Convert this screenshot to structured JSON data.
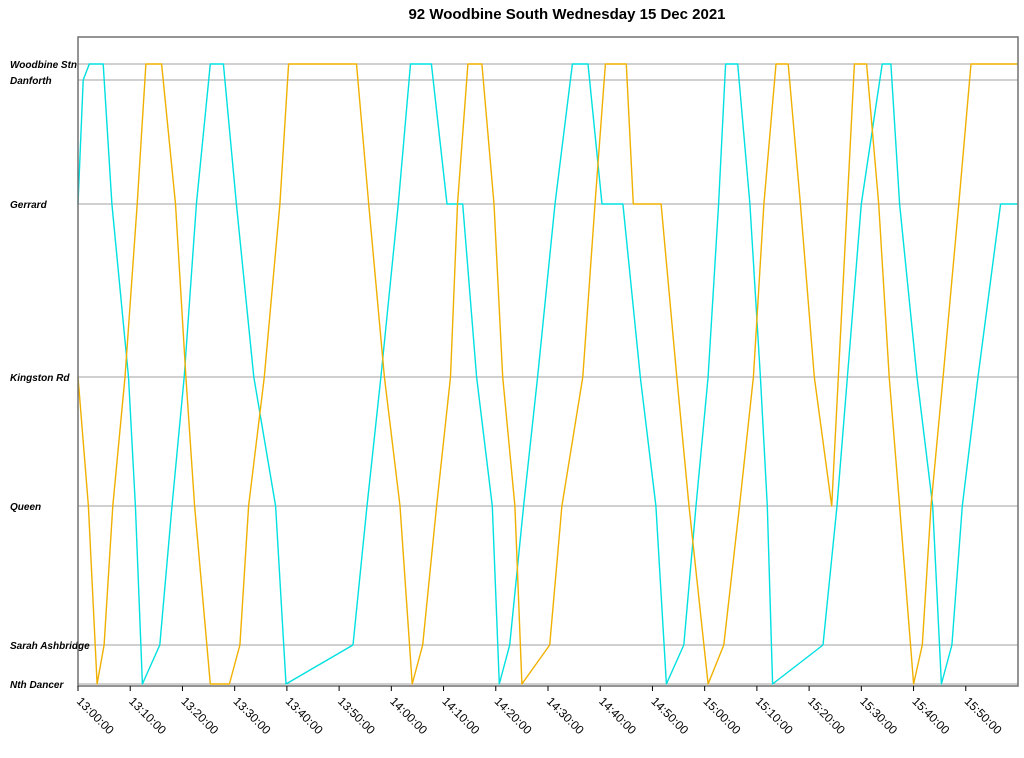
{
  "chart_data": {
    "type": "line",
    "title": "92 Woodbine South Wednesday 15 Dec 2021",
    "x_range": [
      "13:00:00",
      "16:00:00"
    ],
    "x_ticks": [
      "13:00:00",
      "13:10:00",
      "13:20:00",
      "13:30:00",
      "13:40:00",
      "13:50:00",
      "14:00:00",
      "14:10:00",
      "14:20:00",
      "14:30:00",
      "14:40:00",
      "14:50:00",
      "15:00:00",
      "15:10:00",
      "15:20:00",
      "15:30:00",
      "15:40:00",
      "15:50:00"
    ],
    "stops": [
      "Woodbine Stn",
      "Danforth",
      "Gerrard",
      "Kingston Rd",
      "Queen",
      "Sarah Ashbridge",
      "Nth Dancer"
    ],
    "grid": true,
    "colors": [
      "#00e0e0",
      "#f0b000"
    ],
    "series": [
      {
        "points": [
          [
            "13:00:00",
            "Gerrard"
          ],
          [
            "13:01:00",
            "Danforth"
          ],
          [
            "13:02:10",
            "Woodbine Stn"
          ],
          [
            "13:04:50",
            "Woodbine Stn"
          ],
          [
            "13:06:30",
            "Gerrard"
          ],
          [
            "13:09:40",
            "Kingston Rd"
          ],
          [
            "13:11:00",
            "Queen"
          ],
          [
            "13:12:20",
            "Nth Dancer"
          ],
          [
            "13:15:40",
            "Sarah Ashbridge"
          ],
          [
            "13:18:00",
            "Queen"
          ],
          [
            "13:20:20",
            "Kingston Rd"
          ],
          [
            "13:22:40",
            "Gerrard"
          ],
          [
            "13:25:20",
            "Woodbine Stn"
          ],
          [
            "13:27:50",
            "Woodbine Stn"
          ],
          [
            "13:30:20",
            "Gerrard"
          ],
          [
            "13:33:40",
            "Kingston Rd"
          ],
          [
            "13:37:50",
            "Queen"
          ],
          [
            "13:39:50",
            "Nth Dancer"
          ],
          [
            "13:52:40",
            "Sarah Ashbridge"
          ],
          [
            "13:55:20",
            "Queen"
          ],
          [
            "13:58:00",
            "Kingston Rd"
          ],
          [
            "14:01:20",
            "Gerrard"
          ],
          [
            "14:03:40",
            "Woodbine Stn"
          ],
          [
            "14:07:40",
            "Woodbine Stn"
          ],
          [
            "14:10:40",
            "Gerrard"
          ],
          [
            "14:13:40",
            "Gerrard"
          ],
          [
            "14:16:20",
            "Kingston Rd"
          ],
          [
            "14:19:20",
            "Queen"
          ],
          [
            "14:20:40",
            "Nth Dancer"
          ],
          [
            "14:22:40",
            "Sarah Ashbridge"
          ],
          [
            "14:25:20",
            "Queen"
          ],
          [
            "14:28:00",
            "Kingston Rd"
          ],
          [
            "14:31:20",
            "Gerrard"
          ],
          [
            "14:34:40",
            "Woodbine Stn"
          ],
          [
            "14:37:40",
            "Woodbine Stn"
          ],
          [
            "14:40:20",
            "Gerrard"
          ],
          [
            "14:44:20",
            "Gerrard"
          ],
          [
            "14:47:40",
            "Kingston Rd"
          ],
          [
            "14:50:40",
            "Queen"
          ],
          [
            "14:52:40",
            "Nth Dancer"
          ],
          [
            "14:56:00",
            "Sarah Ashbridge"
          ],
          [
            "14:58:20",
            "Queen"
          ],
          [
            "15:00:40",
            "Kingston Rd"
          ],
          [
            "15:02:40",
            "Gerrard"
          ],
          [
            "15:04:00",
            "Woodbine Stn"
          ],
          [
            "15:06:20",
            "Woodbine Stn"
          ],
          [
            "15:08:40",
            "Gerrard"
          ],
          [
            "15:10:40",
            "Kingston Rd"
          ],
          [
            "15:12:00",
            "Queen"
          ],
          [
            "15:13:00",
            "Nth Dancer"
          ],
          [
            "15:22:40",
            "Sarah Ashbridge"
          ],
          [
            "15:25:20",
            "Queen"
          ],
          [
            "15:27:20",
            "Kingston Rd"
          ],
          [
            "15:30:00",
            "Gerrard"
          ],
          [
            "15:34:00",
            "Woodbine Stn"
          ],
          [
            "15:35:40",
            "Woodbine Stn"
          ],
          [
            "15:37:20",
            "Gerrard"
          ],
          [
            "15:40:40",
            "Kingston Rd"
          ],
          [
            "15:43:40",
            "Queen"
          ],
          [
            "15:45:20",
            "Nth Dancer"
          ],
          [
            "15:47:20",
            "Sarah Ashbridge"
          ],
          [
            "15:49:20",
            "Queen"
          ],
          [
            "15:52:20",
            "Kingston Rd"
          ],
          [
            "15:56:40",
            "Gerrard"
          ],
          [
            "15:59:50",
            "Gerrard"
          ]
        ]
      },
      {
        "points": [
          [
            "13:00:00",
            "Kingston Rd"
          ],
          [
            "13:02:00",
            "Queen"
          ],
          [
            "13:03:40",
            "Nth Dancer"
          ],
          [
            "13:05:00",
            "Sarah Ashbridge"
          ],
          [
            "13:06:40",
            "Queen"
          ],
          [
            "13:09:00",
            "Kingston Rd"
          ],
          [
            "13:11:20",
            "Gerrard"
          ],
          [
            "13:13:00",
            "Woodbine Stn"
          ],
          [
            "13:16:00",
            "Woodbine Stn"
          ],
          [
            "13:18:40",
            "Gerrard"
          ],
          [
            "13:20:40",
            "Kingston Rd"
          ],
          [
            "13:22:20",
            "Queen"
          ],
          [
            "13:25:20",
            "Nth Dancer"
          ],
          [
            "13:29:00",
            "Nth Dancer"
          ],
          [
            "13:31:00",
            "Sarah Ashbridge"
          ],
          [
            "13:32:40",
            "Queen"
          ],
          [
            "13:35:40",
            "Kingston Rd"
          ],
          [
            "13:38:40",
            "Gerrard"
          ],
          [
            "13:40:20",
            "Woodbine Stn"
          ],
          [
            "13:53:20",
            "Woodbine Stn"
          ],
          [
            "13:55:40",
            "Gerrard"
          ],
          [
            "13:58:40",
            "Kingston Rd"
          ],
          [
            "14:01:40",
            "Queen"
          ],
          [
            "14:04:00",
            "Nth Dancer"
          ],
          [
            "14:06:00",
            "Sarah Ashbridge"
          ],
          [
            "14:08:40",
            "Queen"
          ],
          [
            "14:11:20",
            "Kingston Rd"
          ],
          [
            "14:12:40",
            "Gerrard"
          ],
          [
            "14:14:40",
            "Woodbine Stn"
          ],
          [
            "14:17:20",
            "Woodbine Stn"
          ],
          [
            "14:19:40",
            "Gerrard"
          ],
          [
            "14:21:20",
            "Kingston Rd"
          ],
          [
            "14:23:40",
            "Queen"
          ],
          [
            "14:25:00",
            "Nth Dancer"
          ],
          [
            "14:30:20",
            "Sarah Ashbridge"
          ],
          [
            "14:32:40",
            "Queen"
          ],
          [
            "14:36:40",
            "Kingston Rd"
          ],
          [
            "14:39:00",
            "Gerrard"
          ],
          [
            "14:41:00",
            "Woodbine Stn"
          ],
          [
            "14:45:00",
            "Woodbine Stn"
          ],
          [
            "14:46:20",
            "Gerrard"
          ],
          [
            "14:51:40",
            "Gerrard"
          ],
          [
            "14:54:40",
            "Kingston Rd"
          ],
          [
            "14:57:00",
            "Queen"
          ],
          [
            "15:00:40",
            "Nth Dancer"
          ],
          [
            "15:03:40",
            "Sarah Ashbridge"
          ],
          [
            "15:06:40",
            "Queen"
          ],
          [
            "15:09:20",
            "Kingston Rd"
          ],
          [
            "15:11:20",
            "Gerrard"
          ],
          [
            "15:13:40",
            "Woodbine Stn"
          ],
          [
            "15:16:00",
            "Woodbine Stn"
          ],
          [
            "15:18:20",
            "Gerrard"
          ],
          [
            "15:21:00",
            "Kingston Rd"
          ],
          [
            "15:24:20",
            "Queen"
          ],
          [
            "15:28:40",
            "Woodbine Stn"
          ],
          [
            "15:31:00",
            "Woodbine Stn"
          ],
          [
            "15:33:20",
            "Gerrard"
          ],
          [
            "15:35:20",
            "Kingston Rd"
          ],
          [
            "15:37:20",
            "Queen"
          ],
          [
            "15:40:00",
            "Nth Dancer"
          ],
          [
            "15:41:40",
            "Sarah Ashbridge"
          ],
          [
            "15:43:20",
            "Queen"
          ],
          [
            "15:45:40",
            "Kingston Rd"
          ],
          [
            "15:48:40",
            "Gerrard"
          ],
          [
            "15:51:00",
            "Woodbine Stn"
          ],
          [
            "15:55:00",
            "Woodbine Stn"
          ],
          [
            "15:59:50",
            "Woodbine Stn"
          ]
        ]
      }
    ]
  }
}
